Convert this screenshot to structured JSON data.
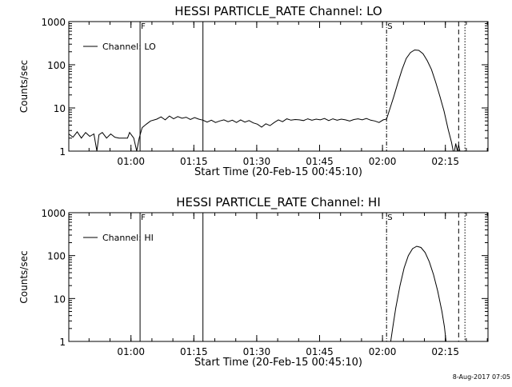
{
  "footer_text": "8-Aug-2017 07:05",
  "chart_data": [
    {
      "type": "line",
      "title": "HESSI PARTICLE_RATE Channel: LO",
      "xlabel": "Start Time (20-Feb-15 00:45:10)",
      "ylabel": "Counts/sec",
      "yscale": "log",
      "ylim": [
        1,
        1000
      ],
      "xlim_min": [
        0,
        100
      ],
      "yticks": [
        "1",
        "10",
        "100",
        "1000"
      ],
      "xticks": [
        {
          "label": "01:00",
          "min": 14.83
        },
        {
          "label": "01:15",
          "min": 29.83
        },
        {
          "label": "01:30",
          "min": 44.83
        },
        {
          "label": "01:45",
          "min": 59.83
        },
        {
          "label": "02:00",
          "min": 74.83
        },
        {
          "label": "02:15",
          "min": 89.83
        }
      ],
      "legend": {
        "text": "Channel: LO",
        "position": "top-left"
      },
      "markers": [
        {
          "min": 17.0,
          "style": "solid",
          "label": "F"
        },
        {
          "min": 32.0,
          "style": "solid",
          "label": ""
        },
        {
          "min": 75.8,
          "style": "dashdot",
          "label": "S"
        },
        {
          "min": 93.0,
          "style": "dashed",
          "label": ""
        },
        {
          "min": 94.5,
          "style": "dotted",
          "label": ""
        }
      ],
      "series": [
        {
          "values": [
            [
              0,
              2.5
            ],
            [
              1,
              2.1
            ],
            [
              2,
              2.8
            ],
            [
              3,
              2.0
            ],
            [
              4,
              2.7
            ],
            [
              5,
              2.2
            ],
            [
              6,
              2.5
            ],
            [
              6.7,
              1.0
            ],
            [
              7.2,
              2.4
            ],
            [
              8,
              2.7
            ],
            [
              9,
              2.0
            ],
            [
              10,
              2.5
            ],
            [
              11,
              2.1
            ],
            [
              12,
              2.0
            ],
            [
              13,
              2.0
            ],
            [
              14,
              2.0
            ],
            [
              14.5,
              2.7
            ],
            [
              15.5,
              2.0
            ],
            [
              16.2,
              1.0
            ],
            [
              16.8,
              2.0
            ],
            [
              17.5,
              3.5
            ],
            [
              18.5,
              4.2
            ],
            [
              19.5,
              5.0
            ],
            [
              21,
              5.5
            ],
            [
              22,
              6.2
            ],
            [
              23,
              5.3
            ],
            [
              24,
              6.5
            ],
            [
              25,
              5.6
            ],
            [
              26,
              6.3
            ],
            [
              27,
              5.8
            ],
            [
              28,
              6.1
            ],
            [
              29,
              5.4
            ],
            [
              30,
              6.0
            ],
            [
              31,
              5.5
            ],
            [
              32,
              5.2
            ],
            [
              33,
              4.7
            ],
            [
              34,
              5.2
            ],
            [
              35,
              4.6
            ],
            [
              36,
              5.0
            ],
            [
              37,
              5.3
            ],
            [
              38,
              4.8
            ],
            [
              39,
              5.2
            ],
            [
              40,
              4.6
            ],
            [
              41,
              5.3
            ],
            [
              42,
              4.7
            ],
            [
              43,
              5.1
            ],
            [
              44,
              4.5
            ],
            [
              45,
              4.2
            ],
            [
              46,
              3.6
            ],
            [
              47,
              4.3
            ],
            [
              48,
              3.9
            ],
            [
              49,
              4.6
            ],
            [
              50,
              5.3
            ],
            [
              51,
              4.8
            ],
            [
              52,
              5.6
            ],
            [
              53,
              5.2
            ],
            [
              54,
              5.4
            ],
            [
              55,
              5.3
            ],
            [
              56,
              5.1
            ],
            [
              57,
              5.6
            ],
            [
              58,
              5.2
            ],
            [
              59,
              5.5
            ],
            [
              60,
              5.3
            ],
            [
              61,
              5.7
            ],
            [
              62,
              5.1
            ],
            [
              63,
              5.6
            ],
            [
              64,
              5.2
            ],
            [
              65,
              5.5
            ],
            [
              66,
              5.3
            ],
            [
              67,
              5.0
            ],
            [
              68,
              5.4
            ],
            [
              69,
              5.6
            ],
            [
              70,
              5.3
            ],
            [
              71,
              5.7
            ],
            [
              72,
              5.2
            ],
            [
              73,
              5.0
            ],
            [
              74,
              4.6
            ],
            [
              75,
              5.3
            ],
            [
              75.8,
              5.5
            ],
            [
              76.5,
              9
            ],
            [
              77.5,
              18
            ],
            [
              78.5,
              38
            ],
            [
              79.5,
              78
            ],
            [
              80.5,
              140
            ],
            [
              81.5,
              192
            ],
            [
              82.5,
              220
            ],
            [
              83.5,
              215
            ],
            [
              84.5,
              180
            ],
            [
              85.5,
              125
            ],
            [
              86.5,
              78
            ],
            [
              87.5,
              40
            ],
            [
              88.5,
              19
            ],
            [
              89.5,
              8.5
            ],
            [
              90.5,
              3.2
            ],
            [
              91.3,
              1.6
            ],
            [
              91.7,
              1.0
            ],
            [
              92.0,
              1.0
            ],
            [
              92.3,
              1.5
            ],
            [
              92.7,
              1.0
            ],
            [
              93.0,
              1.4
            ],
            [
              93.3,
              1.0
            ]
          ]
        }
      ]
    },
    {
      "type": "line",
      "title": "HESSI PARTICLE_RATE Channel: HI",
      "xlabel": "Start Time (20-Feb-15 00:45:10)",
      "ylabel": "Counts/sec",
      "yscale": "log",
      "ylim": [
        1,
        1000
      ],
      "xlim_min": [
        0,
        100
      ],
      "yticks": [
        "1",
        "10",
        "100",
        "1000"
      ],
      "xticks": [
        {
          "label": "01:00",
          "min": 14.83
        },
        {
          "label": "01:15",
          "min": 29.83
        },
        {
          "label": "01:30",
          "min": 44.83
        },
        {
          "label": "01:45",
          "min": 59.83
        },
        {
          "label": "02:00",
          "min": 74.83
        },
        {
          "label": "02:15",
          "min": 89.83
        }
      ],
      "legend": {
        "text": "Channel: HI",
        "position": "top-left"
      },
      "markers": [
        {
          "min": 17.0,
          "style": "solid",
          "label": "F"
        },
        {
          "min": 32.0,
          "style": "solid",
          "label": ""
        },
        {
          "min": 75.8,
          "style": "dashdot",
          "label": "S"
        },
        {
          "min": 93.0,
          "style": "dashed",
          "label": ""
        },
        {
          "min": 94.5,
          "style": "dotted",
          "label": ""
        }
      ],
      "series": [
        {
          "values": [
            [
              76.8,
              1.0
            ],
            [
              77.3,
              2.2
            ],
            [
              78,
              6
            ],
            [
              79,
              20
            ],
            [
              80,
              52
            ],
            [
              81,
              100
            ],
            [
              82,
              145
            ],
            [
              83,
              165
            ],
            [
              84,
              155
            ],
            [
              85,
              118
            ],
            [
              86,
              72
            ],
            [
              87,
              36
            ],
            [
              88,
              15
            ],
            [
              89,
              5
            ],
            [
              89.6,
              2.2
            ],
            [
              90.0,
              1.0
            ]
          ]
        }
      ]
    }
  ]
}
